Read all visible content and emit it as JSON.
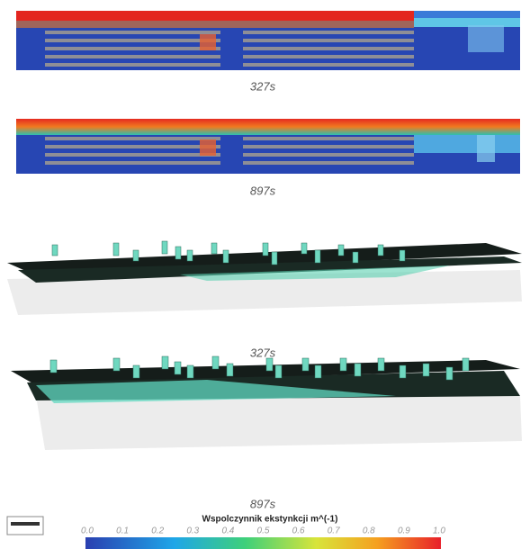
{
  "panels": [
    {
      "label": "327s"
    },
    {
      "label": "897s"
    },
    {
      "label": "327s"
    },
    {
      "label": "897s"
    }
  ],
  "colorbar": {
    "title": "Wspolczynnik ekstynkcji m^(-1)",
    "ticks": [
      "0.0",
      "0.1",
      "0.2",
      "0.3",
      "0.4",
      "0.5",
      "0.6",
      "0.7",
      "0.8",
      "0.9",
      "1.0"
    ]
  }
}
